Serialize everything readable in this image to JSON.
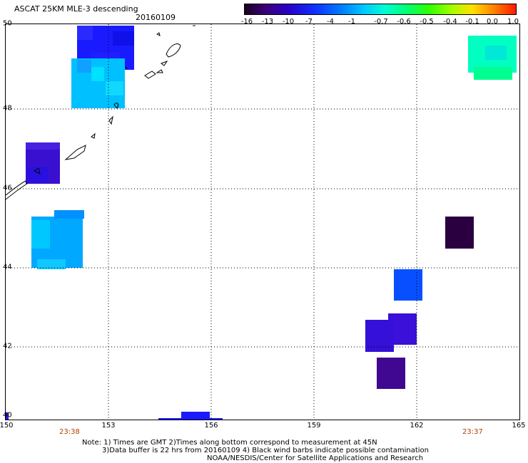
{
  "header": {
    "title": "ASCAT 25KM MLE-3 descending",
    "date": "20160109"
  },
  "colorbar": {
    "labels": [
      "-16",
      "-13",
      "-10",
      "-7",
      "-4",
      "-1",
      "-0.7",
      "-0.6",
      "-0.5",
      "-0.4",
      "-0.1",
      "0.0",
      "1.0"
    ],
    "colors": [
      "#1a0020",
      "#3b007a",
      "#2800c8",
      "#1030ff",
      "#0080ff",
      "#00c8ff",
      "#00ffd0",
      "#00ff70",
      "#30ff00",
      "#a0ff00",
      "#ffe000",
      "#ff8000",
      "#ff1a00"
    ]
  },
  "map": {
    "lat_labels": [
      "50",
      "48",
      "46",
      "44",
      "42",
      "40"
    ],
    "lon_labels": [
      "150",
      "153",
      "156",
      "159",
      "162",
      "165"
    ],
    "time_labels": {
      "left": "23:38",
      "right": "23:37"
    },
    "swaths": [
      {
        "name": "swath-kamchatka-north",
        "color": "#1a1aff",
        "shade": "#2a2aff"
      },
      {
        "name": "swath-kamchatka-south",
        "color": "#00c0ff",
        "shade": "#10d8ff"
      },
      {
        "name": "swath-kuril-west",
        "color": "#3a10d0",
        "shade": "#4a20e0"
      },
      {
        "name": "swath-hokkaido-east",
        "color": "#00a8ff",
        "shade": "#10c8ff"
      },
      {
        "name": "swath-northeast",
        "color": "#00ffc0",
        "shade": "#00ff90"
      },
      {
        "name": "swath-dark-east",
        "color": "#2a0040",
        "shade": "#2a0040"
      },
      {
        "name": "swath-blue-east",
        "color": "#0850ff",
        "shade": "#0850ff"
      },
      {
        "name": "swath-violet-east-1",
        "color": "#3b10d8",
        "shade": "#3b10d8"
      },
      {
        "name": "swath-violet-east-2",
        "color": "#3410d8",
        "shade": "#3410d8"
      },
      {
        "name": "swath-purple-east",
        "color": "#400890",
        "shade": "#400890"
      },
      {
        "name": "swath-bottom-blue",
        "color": "#1a1aff",
        "shade": "#1a1aff"
      }
    ]
  },
  "notes": {
    "line1": "Note: 1) Times are GMT 2)Times along bottom correspond to measurement at 45N",
    "line2": "3)Data buffer is 22 hrs from 20160109 4) Black wind barbs indicate possible contamination",
    "line3": "NOAA/NESDIS/Center for Satellite Applications and Research"
  }
}
